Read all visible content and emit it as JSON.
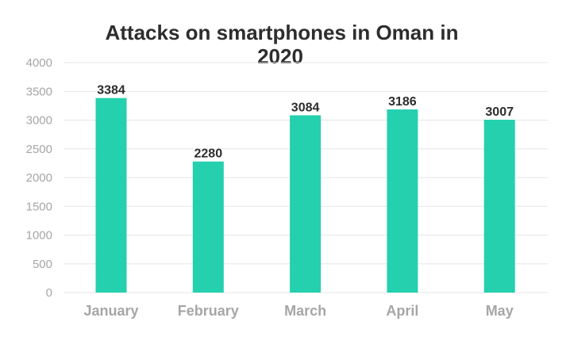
{
  "chart_data": {
    "type": "bar",
    "title_lines": [
      "Attacks on smartphones in Oman in",
      "2020"
    ],
    "categories": [
      "January",
      "February",
      "March",
      "April",
      "May"
    ],
    "values": [
      3384,
      2280,
      3084,
      3186,
      3007
    ],
    "ylim": [
      0,
      4000
    ],
    "yticks": [
      0,
      500,
      1000,
      1500,
      2000,
      2500,
      3000,
      3500,
      4000
    ],
    "grid": true,
    "legend": "none",
    "colors": {
      "bar": "#24d0ae",
      "grid": "#e6e6e6"
    }
  }
}
